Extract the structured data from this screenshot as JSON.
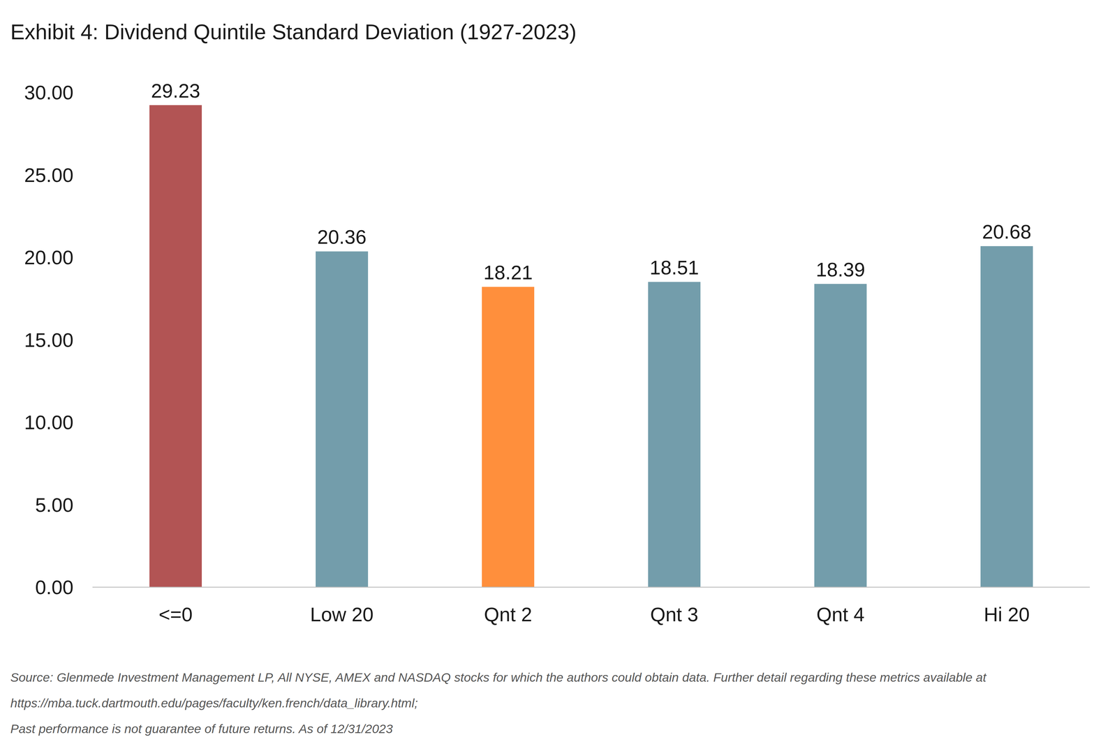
{
  "chart_data": {
    "type": "bar",
    "title": "Exhibit 4: Dividend Quintile Standard Deviation (1927-2023)",
    "categories": [
      "<=0",
      "Low 20",
      "Qnt 2",
      "Qnt 3",
      "Qnt 4",
      "Hi 20"
    ],
    "values": [
      29.23,
      20.36,
      18.21,
      18.51,
      18.39,
      20.68
    ],
    "colors": [
      "#b25454",
      "#739dab",
      "#ff8f3c",
      "#739dab",
      "#739dab",
      "#739dab"
    ],
    "ylim": [
      0,
      30
    ],
    "yticks": [
      {
        "value": 0,
        "label": "0.00"
      },
      {
        "value": 5,
        "label": "5.00"
      },
      {
        "value": 10,
        "label": "10.00"
      },
      {
        "value": 15,
        "label": "15.00"
      },
      {
        "value": 20,
        "label": "20.00"
      },
      {
        "value": 25,
        "label": "25.00"
      },
      {
        "value": 30,
        "label": "30.00"
      }
    ],
    "grid": false,
    "data_labels": true,
    "annotations": [
      "Source: Glenmede Investment Management LP, All NYSE, AMEX and NASDAQ stocks for which the authors could obtain data.  Further detail regarding these metrics available at",
      "https://mba.tuck.dartmouth.edu/pages/faculty/ken.french/data_library.html;",
      "Past performance is not guarantee of future returns. As of 12/31/2023"
    ]
  }
}
